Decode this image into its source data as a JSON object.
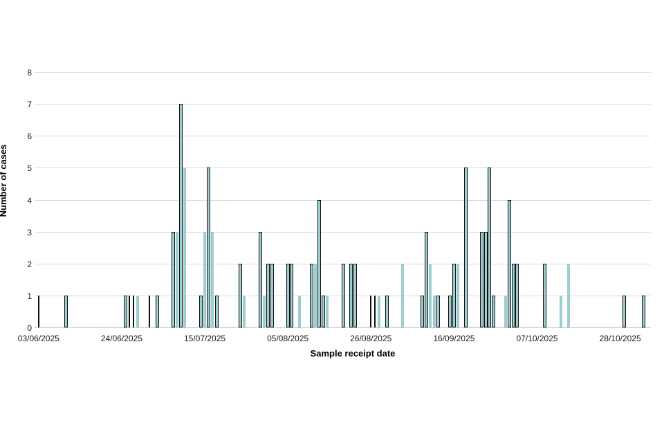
{
  "chart_data": {
    "type": "bar",
    "title": "",
    "xlabel": "Sample receipt date",
    "ylabel": "Number of cases",
    "ylim": [
      0,
      8
    ],
    "yticks": [
      0,
      1,
      2,
      3,
      4,
      5,
      6,
      7,
      8
    ],
    "xtick_labels": [
      "03/06/2025",
      "24/06/2025",
      "15/07/2025",
      "05/08/2025",
      "26/08/2025",
      "16/09/2025",
      "07/10/2025",
      "28/10/2025"
    ],
    "start_date": "03/06/2025",
    "grid": "horizontal",
    "legend": "none",
    "colors": {
      "bar_fill": "#9ecdd0",
      "bar_outline": "#111111",
      "gridline": "#d9d9d9",
      "axis_line": "#c2c2c2",
      "text": "#000000"
    },
    "bars": [
      {
        "date": "03/06/2025",
        "cases": 1,
        "variant": "dark"
      },
      {
        "date": "10/06/2025",
        "cases": 1,
        "variant": "outlined"
      },
      {
        "date": "25/06/2025",
        "cases": 1,
        "variant": "outlined"
      },
      {
        "date": "26/06/2025",
        "cases": 1,
        "variant": "dark"
      },
      {
        "date": "27/06/2025",
        "cases": 1,
        "variant": "dark"
      },
      {
        "date": "28/06/2025",
        "cases": 1,
        "variant": "plain"
      },
      {
        "date": "01/07/2025",
        "cases": 1,
        "variant": "dark"
      },
      {
        "date": "03/07/2025",
        "cases": 1,
        "variant": "outlined"
      },
      {
        "date": "07/07/2025",
        "cases": 3,
        "variant": "outlined"
      },
      {
        "date": "08/07/2025",
        "cases": 3,
        "variant": "plain"
      },
      {
        "date": "09/07/2025",
        "cases": 7,
        "variant": "outlined"
      },
      {
        "date": "10/07/2025",
        "cases": 5,
        "variant": "plain"
      },
      {
        "date": "14/07/2025",
        "cases": 1,
        "variant": "outlined"
      },
      {
        "date": "15/07/2025",
        "cases": 3,
        "variant": "plain"
      },
      {
        "date": "16/07/2025",
        "cases": 5,
        "variant": "outlined"
      },
      {
        "date": "17/07/2025",
        "cases": 3,
        "variant": "plain"
      },
      {
        "date": "18/07/2025",
        "cases": 1,
        "variant": "outlined"
      },
      {
        "date": "24/07/2025",
        "cases": 2,
        "variant": "outlined"
      },
      {
        "date": "25/07/2025",
        "cases": 1,
        "variant": "plain"
      },
      {
        "date": "29/07/2025",
        "cases": 3,
        "variant": "outlined"
      },
      {
        "date": "30/07/2025",
        "cases": 1,
        "variant": "plain"
      },
      {
        "date": "31/07/2025",
        "cases": 2,
        "variant": "outlined"
      },
      {
        "date": "01/08/2025",
        "cases": 2,
        "variant": "outlined"
      },
      {
        "date": "05/08/2025",
        "cases": 2,
        "variant": "outlined"
      },
      {
        "date": "06/08/2025",
        "cases": 2,
        "variant": "outlined"
      },
      {
        "date": "08/08/2025",
        "cases": 1,
        "variant": "plain"
      },
      {
        "date": "11/08/2025",
        "cases": 2,
        "variant": "outlined"
      },
      {
        "date": "12/08/2025",
        "cases": 2,
        "variant": "plain"
      },
      {
        "date": "13/08/2025",
        "cases": 4,
        "variant": "outlined"
      },
      {
        "date": "14/08/2025",
        "cases": 1,
        "variant": "outlined"
      },
      {
        "date": "15/08/2025",
        "cases": 1,
        "variant": "plain"
      },
      {
        "date": "19/08/2025",
        "cases": 2,
        "variant": "outlined"
      },
      {
        "date": "21/08/2025",
        "cases": 2,
        "variant": "outlined"
      },
      {
        "date": "22/08/2025",
        "cases": 2,
        "variant": "outlined"
      },
      {
        "date": "26/08/2025",
        "cases": 1,
        "variant": "dark"
      },
      {
        "date": "27/08/2025",
        "cases": 1,
        "variant": "dark"
      },
      {
        "date": "28/08/2025",
        "cases": 1,
        "variant": "plain"
      },
      {
        "date": "30/08/2025",
        "cases": 1,
        "variant": "outlined"
      },
      {
        "date": "03/09/2025",
        "cases": 2,
        "variant": "plain"
      },
      {
        "date": "08/09/2025",
        "cases": 1,
        "variant": "outlined"
      },
      {
        "date": "09/09/2025",
        "cases": 3,
        "variant": "outlined"
      },
      {
        "date": "10/09/2025",
        "cases": 2,
        "variant": "plain"
      },
      {
        "date": "11/09/2025",
        "cases": 1,
        "variant": "plain"
      },
      {
        "date": "12/09/2025",
        "cases": 1,
        "variant": "outlined"
      },
      {
        "date": "15/09/2025",
        "cases": 1,
        "variant": "outlined"
      },
      {
        "date": "16/09/2025",
        "cases": 2,
        "variant": "outlined"
      },
      {
        "date": "17/09/2025",
        "cases": 2,
        "variant": "plain"
      },
      {
        "date": "19/09/2025",
        "cases": 5,
        "variant": "outlined"
      },
      {
        "date": "23/09/2025",
        "cases": 3,
        "variant": "outlined"
      },
      {
        "date": "24/09/2025",
        "cases": 3,
        "variant": "outlined"
      },
      {
        "date": "25/09/2025",
        "cases": 5,
        "variant": "outlined"
      },
      {
        "date": "26/09/2025",
        "cases": 1,
        "variant": "outlined"
      },
      {
        "date": "29/09/2025",
        "cases": 1,
        "variant": "plain"
      },
      {
        "date": "30/09/2025",
        "cases": 4,
        "variant": "outlined"
      },
      {
        "date": "01/10/2025",
        "cases": 2,
        "variant": "outlined"
      },
      {
        "date": "02/10/2025",
        "cases": 2,
        "variant": "outlined"
      },
      {
        "date": "09/10/2025",
        "cases": 2,
        "variant": "outlined"
      },
      {
        "date": "13/10/2025",
        "cases": 1,
        "variant": "plain"
      },
      {
        "date": "15/10/2025",
        "cases": 2,
        "variant": "plain"
      },
      {
        "date": "29/10/2025",
        "cases": 1,
        "variant": "outlined"
      },
      {
        "date": "03/11/2025",
        "cases": 1,
        "variant": "outlined"
      }
    ]
  }
}
